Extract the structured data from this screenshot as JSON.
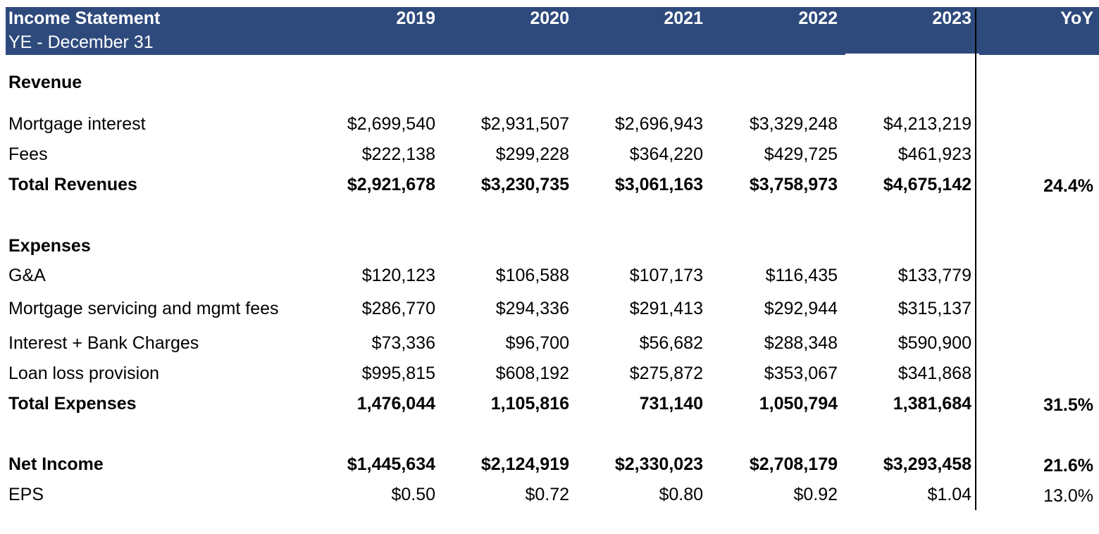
{
  "header": {
    "title": "Income Statement",
    "subtitle": "YE - December 31",
    "years": [
      "2019",
      "2020",
      "2021",
      "2022",
      "2023"
    ],
    "yoy_label": "YoY"
  },
  "sections": {
    "revenue": "Revenue",
    "expenses": "Expenses"
  },
  "rows": {
    "mortgage_interest": {
      "label": "Mortgage interest",
      "values": [
        "$2,699,540",
        "$2,931,507",
        "$2,696,943",
        "$3,329,248",
        "$4,213,219"
      ],
      "yoy": ""
    },
    "fees": {
      "label": "Fees",
      "values": [
        "$222,138",
        "$299,228",
        "$364,220",
        "$429,725",
        "$461,923"
      ],
      "yoy": ""
    },
    "total_revenues": {
      "label": "Total Revenues",
      "values": [
        "$2,921,678",
        "$3,230,735",
        "$3,061,163",
        "$3,758,973",
        "$4,675,142"
      ],
      "yoy": "24.4%"
    },
    "ga": {
      "label": "G&A",
      "values": [
        "$120,123",
        "$106,588",
        "$107,173",
        "$116,435",
        "$133,779"
      ],
      "yoy": ""
    },
    "mortgage_servicing": {
      "label": "Mortgage servicing and mgmt fees",
      "values": [
        "$286,770",
        "$294,336",
        "$291,413",
        "$292,944",
        "$315,137"
      ],
      "yoy": ""
    },
    "interest_bank": {
      "label": "Interest + Bank Charges",
      "values": [
        "$73,336",
        "$96,700",
        "$56,682",
        "$288,348",
        "$590,900"
      ],
      "yoy": ""
    },
    "loan_loss": {
      "label": "Loan loss provision",
      "values": [
        "$995,815",
        "$608,192",
        "$275,872",
        "$353,067",
        "$341,868"
      ],
      "yoy": ""
    },
    "total_expenses": {
      "label": "Total Expenses",
      "values": [
        "1,476,044",
        "1,105,816",
        "731,140",
        "1,050,794",
        "1,381,684"
      ],
      "yoy": "31.5%"
    },
    "net_income": {
      "label": "Net Income",
      "values": [
        "$1,445,634",
        "$2,124,919",
        "$2,330,023",
        "$2,708,179",
        "$3,293,458"
      ],
      "yoy": "21.6%"
    },
    "eps": {
      "label": "EPS",
      "values": [
        "$0.50",
        "$0.72",
        "$0.80",
        "$0.92",
        "$1.04"
      ],
      "yoy": "13.0%"
    }
  },
  "colors": {
    "header_bg": "#2e4a7d",
    "header_text": "#ffffff"
  }
}
